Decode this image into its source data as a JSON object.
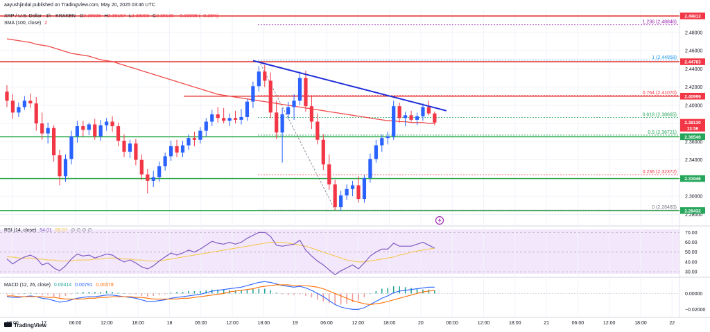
{
  "header": {
    "published": "aayushjindal published on TradingView.com, May 20, 2025 03:46 UTC",
    "symbol": "XRP / U.S. Dollar · 1h · KRAKEN",
    "o_label": "O",
    "o_value": "2.39028",
    "h_label": "H",
    "h_value": "2.39157",
    "l_label": "L",
    "l_value": "2.38000",
    "c_label": "C",
    "c_value": "2.38130",
    "change": "−0.00905 (−0.38%)",
    "sma_label": "SMA (100, close)",
    "sma_value": "2"
  },
  "axis": {
    "currency": "USD",
    "y_ticks": [
      "2.48000",
      "2.46000",
      "2.44000",
      "2.42000",
      "2.40000",
      "2.38000",
      "2.36000",
      "2.34000",
      "2.32000",
      "2.30000",
      "2.28000"
    ],
    "x_ticks": [
      "18:00",
      "17",
      "06:00",
      "12:00",
      "18:00",
      "18",
      "06:00",
      "12:00",
      "18:00",
      "19",
      "06:00",
      "12:00",
      "18:00",
      "20",
      "06:00",
      "12:00",
      "18:00",
      "21",
      "06:00",
      "12:00",
      "18:00",
      "22"
    ]
  },
  "price_labels": [
    {
      "text": "2.49813",
      "color": "#f23645"
    },
    {
      "text": "2.44783",
      "color": "#f23645"
    },
    {
      "text": "2.40999",
      "color": "#f23645"
    },
    {
      "text": "2.38130",
      "color": "#f23645"
    },
    {
      "text": "13:56",
      "color": "#f23645"
    },
    {
      "text": "2.36540",
      "color": "#26a65b"
    },
    {
      "text": "2.31946",
      "color": "#26a65b"
    },
    {
      "text": "2.28432",
      "color": "#26a65b"
    }
  ],
  "fib_labels": [
    {
      "text": "1.236 (2.48846)",
      "color": "#9c27b0"
    },
    {
      "text": "1 (2.44958)",
      "color": "#2196f3"
    },
    {
      "text": "0.764 (2.41070)",
      "color": "#f23645"
    },
    {
      "text": "0.618 (2.38665)",
      "color": "#26a65b"
    },
    {
      "text": "0.5 (2.36721)",
      "color": "#26a65b"
    },
    {
      "text": "0.236 (2.32372)",
      "color": "#f23645"
    },
    {
      "text": "0 (2.28483)",
      "color": "#787b86"
    }
  ],
  "rsi": {
    "label": "RSI (14, close)",
    "value": "54.01",
    "value2": "55.07",
    "ticks": [
      "70.00",
      "60.00",
      "50.00",
      "40.00",
      "30.00"
    ]
  },
  "macd": {
    "label": "MACD (12, 26, close)",
    "hist": "0.00414",
    "macd": "0.00791",
    "signal": "0.00378",
    "ticks": [
      "0.00000",
      "−0.02000"
    ]
  },
  "logo": "TradingView",
  "colors": {
    "up": "#2962ff",
    "down": "#f23645",
    "sma": "#f04a4a",
    "trend": "#1f2ed6",
    "resistance": "#e53935",
    "support": "#2ea84a"
  },
  "chart_data": {
    "type": "candlestick",
    "title": "XRP / U.S. Dollar · 1h · KRAKEN",
    "ylim": [
      2.275,
      2.505
    ],
    "candles": [
      [
        2.415,
        2.422,
        2.398,
        2.405
      ],
      [
        2.405,
        2.412,
        2.385,
        2.392
      ],
      [
        2.392,
        2.403,
        2.387,
        2.398
      ],
      [
        2.398,
        2.41,
        2.395,
        2.405
      ],
      [
        2.405,
        2.413,
        2.397,
        2.402
      ],
      [
        2.402,
        2.409,
        2.372,
        2.38
      ],
      [
        2.38,
        2.392,
        2.362,
        2.369
      ],
      [
        2.369,
        2.381,
        2.358,
        2.375
      ],
      [
        2.375,
        2.378,
        2.338,
        2.345
      ],
      [
        2.345,
        2.351,
        2.312,
        2.322
      ],
      [
        2.322,
        2.346,
        2.316,
        2.341
      ],
      [
        2.341,
        2.372,
        2.335,
        2.366
      ],
      [
        2.366,
        2.383,
        2.359,
        2.377
      ],
      [
        2.377,
        2.383,
        2.366,
        2.373
      ],
      [
        2.373,
        2.381,
        2.367,
        2.379
      ],
      [
        2.379,
        2.385,
        2.362,
        2.366
      ],
      [
        2.366,
        2.384,
        2.361,
        2.378
      ],
      [
        2.378,
        2.386,
        2.372,
        2.382
      ],
      [
        2.382,
        2.388,
        2.371,
        2.377
      ],
      [
        2.377,
        2.381,
        2.355,
        2.361
      ],
      [
        2.361,
        2.368,
        2.343,
        2.349
      ],
      [
        2.349,
        2.362,
        2.342,
        2.358
      ],
      [
        2.358,
        2.363,
        2.334,
        2.34
      ],
      [
        2.34,
        2.346,
        2.318,
        2.324
      ],
      [
        2.324,
        2.33,
        2.303,
        2.317
      ],
      [
        2.317,
        2.328,
        2.31,
        2.321
      ],
      [
        2.321,
        2.338,
        2.316,
        2.333
      ],
      [
        2.333,
        2.348,
        2.328,
        2.344
      ],
      [
        2.344,
        2.361,
        2.339,
        2.355
      ],
      [
        2.355,
        2.362,
        2.343,
        2.348
      ],
      [
        2.348,
        2.361,
        2.343,
        2.356
      ],
      [
        2.356,
        2.368,
        2.351,
        2.364
      ],
      [
        2.364,
        2.371,
        2.355,
        2.362
      ],
      [
        2.362,
        2.376,
        2.358,
        2.372
      ],
      [
        2.372,
        2.386,
        2.366,
        2.382
      ],
      [
        2.382,
        2.395,
        2.377,
        2.39
      ],
      [
        2.39,
        2.398,
        2.381,
        2.386
      ],
      [
        2.386,
        2.397,
        2.38,
        2.383
      ],
      [
        2.383,
        2.391,
        2.377,
        2.386
      ],
      [
        2.386,
        2.394,
        2.38,
        2.384
      ],
      [
        2.384,
        2.396,
        2.379,
        2.387
      ],
      [
        2.387,
        2.407,
        2.383,
        2.404
      ],
      [
        2.404,
        2.426,
        2.397,
        2.421
      ],
      [
        2.421,
        2.443,
        2.415,
        2.437
      ],
      [
        2.437,
        2.444,
        2.42,
        2.427
      ],
      [
        2.427,
        2.436,
        2.386,
        2.392
      ],
      [
        2.392,
        2.405,
        2.363,
        2.37
      ],
      [
        2.37,
        2.397,
        2.337,
        2.39
      ],
      [
        2.39,
        2.404,
        2.385,
        2.398
      ],
      [
        2.398,
        2.412,
        2.384,
        2.405
      ],
      [
        2.405,
        2.437,
        2.4,
        2.43
      ],
      [
        2.43,
        2.438,
        2.393,
        2.399
      ],
      [
        2.399,
        2.41,
        2.374,
        2.382
      ],
      [
        2.382,
        2.391,
        2.357,
        2.362
      ],
      [
        2.362,
        2.368,
        2.329,
        2.335
      ],
      [
        2.335,
        2.346,
        2.307,
        2.313
      ],
      [
        2.313,
        2.318,
        2.285,
        2.288
      ],
      [
        2.288,
        2.306,
        2.284,
        2.301
      ],
      [
        2.301,
        2.313,
        2.296,
        2.308
      ],
      [
        2.308,
        2.317,
        2.3,
        2.312
      ],
      [
        2.312,
        2.322,
        2.293,
        2.297
      ],
      [
        2.297,
        2.323,
        2.293,
        2.32
      ],
      [
        2.32,
        2.347,
        2.315,
        2.341
      ],
      [
        2.341,
        2.362,
        2.337,
        2.356
      ],
      [
        2.356,
        2.368,
        2.349,
        2.364
      ],
      [
        2.364,
        2.371,
        2.357,
        2.366
      ],
      [
        2.366,
        2.405,
        2.362,
        2.399
      ],
      [
        2.399,
        2.403,
        2.381,
        2.386
      ],
      [
        2.386,
        2.393,
        2.377,
        2.389
      ],
      [
        2.389,
        2.394,
        2.382,
        2.384
      ],
      [
        2.384,
        2.392,
        2.378,
        2.388
      ],
      [
        2.388,
        2.402,
        2.383,
        2.398
      ],
      [
        2.398,
        2.405,
        2.389,
        2.391
      ],
      [
        2.391,
        2.393,
        2.378,
        2.381
      ]
    ],
    "sma_100": [
      2.473,
      2.472,
      2.471,
      2.47,
      2.469,
      2.467,
      2.466,
      2.465,
      2.463,
      2.461,
      2.459,
      2.457,
      2.456,
      2.455,
      2.454,
      2.452,
      2.45,
      2.449,
      2.448,
      2.446,
      2.444,
      2.442,
      2.44,
      2.438,
      2.436,
      2.434,
      2.432,
      2.43,
      2.428,
      2.426,
      2.424,
      2.422,
      2.42,
      2.418,
      2.416,
      2.414,
      2.412,
      2.411,
      2.41,
      2.409,
      2.408,
      2.407,
      2.406,
      2.405,
      2.404,
      2.403,
      2.402,
      2.401,
      2.4,
      2.399,
      2.398,
      2.397,
      2.396,
      2.395,
      2.394,
      2.393,
      2.392,
      2.391,
      2.39,
      2.389,
      2.388,
      2.387,
      2.386,
      2.385,
      2.384,
      2.383,
      2.383,
      2.382,
      2.382,
      2.381,
      2.381,
      2.381,
      2.38,
      2.38
    ],
    "horizontal_levels": {
      "resistance": [
        2.49813,
        2.44783,
        2.40999
      ],
      "support": [
        2.3654,
        2.31946,
        2.28432
      ]
    },
    "fib_levels": [
      {
        "ratio": 1.236,
        "value": 2.48846
      },
      {
        "ratio": 1,
        "value": 2.44958
      },
      {
        "ratio": 0.764,
        "value": 2.4107
      },
      {
        "ratio": 0.618,
        "value": 2.38665
      },
      {
        "ratio": 0.5,
        "value": 2.36721
      },
      {
        "ratio": 0.236,
        "value": 2.32372
      },
      {
        "ratio": 0,
        "value": 2.28483
      }
    ],
    "trend_line": {
      "from": [
        42,
        2.449
      ],
      "to": [
        75,
        2.394
      ]
    },
    "rsi_series": [
      43,
      38,
      42,
      45,
      47,
      44,
      37,
      39,
      34,
      31,
      36,
      43,
      48,
      46,
      47,
      44,
      46,
      48,
      47,
      43,
      40,
      42,
      39,
      35,
      33,
      36,
      41,
      45,
      49,
      47,
      49,
      52,
      50,
      53,
      57,
      61,
      59,
      58,
      60,
      58,
      60,
      64,
      67,
      70,
      70,
      66,
      57,
      56,
      57,
      58,
      62,
      52,
      46,
      41,
      37,
      32,
      27,
      31,
      34,
      37,
      33,
      39,
      46,
      50,
      53,
      53,
      59,
      56,
      56,
      56,
      58,
      60,
      57,
      54
    ],
    "rsi_sma": [
      45,
      45,
      44,
      44,
      44,
      43,
      43,
      42,
      42,
      41,
      41,
      41,
      42,
      42,
      42,
      43,
      43,
      44,
      44,
      44,
      43,
      43,
      42,
      42,
      41,
      41,
      41,
      42,
      43,
      44,
      45,
      46,
      47,
      48,
      49,
      50,
      51,
      52,
      53,
      54,
      55,
      56,
      57,
      58,
      59,
      60,
      60,
      60,
      59,
      58,
      57,
      56,
      54,
      52,
      50,
      48,
      46,
      44,
      42,
      41,
      40,
      40,
      41,
      42,
      43,
      44,
      45,
      47,
      48,
      50,
      51,
      52,
      53,
      54
    ],
    "rsi_ylim": [
      28,
      73
    ],
    "macd_series": [
      -0.004,
      -0.005,
      -0.005,
      -0.004,
      -0.003,
      -0.004,
      -0.006,
      -0.007,
      -0.009,
      -0.011,
      -0.01,
      -0.008,
      -0.006,
      -0.005,
      -0.004,
      -0.004,
      -0.003,
      -0.002,
      -0.002,
      -0.003,
      -0.004,
      -0.005,
      -0.006,
      -0.008,
      -0.01,
      -0.01,
      -0.009,
      -0.008,
      -0.006,
      -0.005,
      -0.004,
      -0.003,
      -0.002,
      -0.001,
      0.001,
      0.003,
      0.004,
      0.005,
      0.006,
      0.007,
      0.008,
      0.01,
      0.012,
      0.014,
      0.015,
      0.014,
      0.012,
      0.01,
      0.009,
      0.008,
      0.009,
      0.007,
      0.004,
      0.0,
      -0.004,
      -0.009,
      -0.014,
      -0.017,
      -0.019,
      -0.02,
      -0.02,
      -0.018,
      -0.014,
      -0.01,
      -0.006,
      -0.003,
      0.001,
      0.003,
      0.004,
      0.005,
      0.006,
      0.007,
      0.008,
      0.008
    ],
    "signal_series": [
      -0.003,
      -0.003,
      -0.004,
      -0.004,
      -0.004,
      -0.004,
      -0.004,
      -0.005,
      -0.005,
      -0.006,
      -0.007,
      -0.007,
      -0.007,
      -0.007,
      -0.006,
      -0.006,
      -0.005,
      -0.005,
      -0.004,
      -0.004,
      -0.004,
      -0.004,
      -0.005,
      -0.005,
      -0.006,
      -0.007,
      -0.007,
      -0.007,
      -0.007,
      -0.007,
      -0.006,
      -0.006,
      -0.005,
      -0.004,
      -0.003,
      -0.002,
      -0.001,
      0.0,
      0.002,
      0.003,
      0.004,
      0.005,
      0.006,
      0.008,
      0.009,
      0.01,
      0.011,
      0.011,
      0.011,
      0.01,
      0.01,
      0.01,
      0.009,
      0.008,
      0.006,
      0.003,
      0.0,
      -0.003,
      -0.006,
      -0.009,
      -0.011,
      -0.013,
      -0.014,
      -0.013,
      -0.012,
      -0.01,
      -0.008,
      -0.006,
      -0.004,
      -0.002,
      0.0,
      0.002,
      0.003,
      0.004
    ],
    "macd_ylim": [
      -0.025,
      0.017
    ]
  }
}
